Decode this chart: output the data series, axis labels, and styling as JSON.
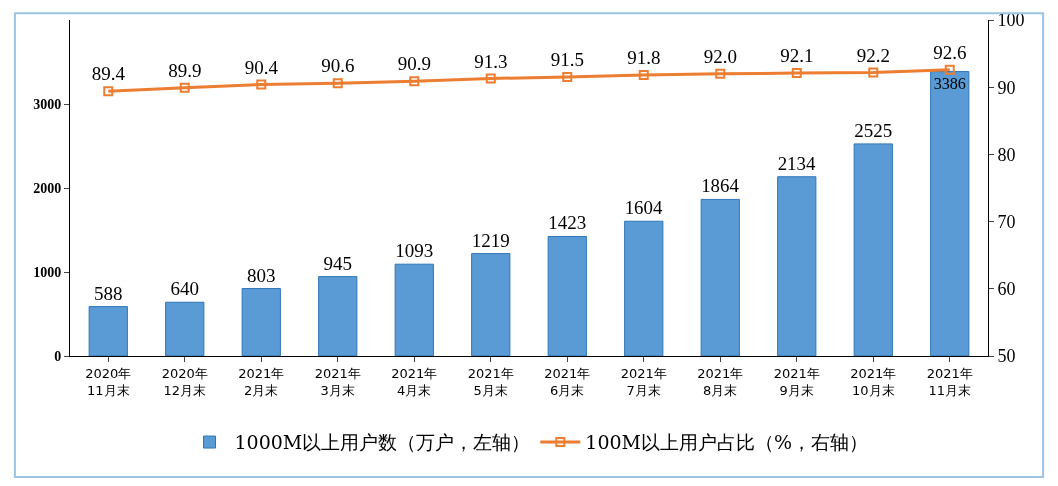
{
  "chart_data": {
    "type": "bar",
    "categories": [
      "2020年\n11月末",
      "2020年\n12月末",
      "2021年\n2月末",
      "2021年\n3月末",
      "2021年\n4月末",
      "2021年\n5月末",
      "2021年\n6月末",
      "2021年\n7月末",
      "2021年\n8月末",
      "2021年\n9月末",
      "2021年\n10月末",
      "2021年\n11月末"
    ],
    "series": [
      {
        "name": "1000M以上用户数（万户，左轴）",
        "color": "#5b9bd5",
        "values": [
          588,
          640,
          803,
          945,
          1093,
          1219,
          1423,
          1604,
          1864,
          2134,
          2525,
          3386
        ]
      },
      {
        "name": "100M以上用户占比（%，右轴）",
        "type": "line",
        "axis": "y2",
        "color": "#ed7d31",
        "marker": "square",
        "values": [
          89.4,
          89.9,
          90.4,
          90.6,
          90.9,
          91.3,
          91.5,
          91.8,
          92.0,
          92.1,
          92.2,
          92.6
        ],
        "value_labels": [
          "89.4",
          "89.9",
          "90.4",
          "90.6",
          "90.9",
          "91.3",
          "91.5",
          "91.8",
          "92.0",
          "92.1",
          "92.2",
          "92.6"
        ]
      }
    ],
    "data_labels": true,
    "ylim": [
      0,
      4000
    ],
    "yticks": [
      0,
      1000,
      2000,
      3000
    ],
    "y2lim": [
      50,
      100
    ],
    "y2ticks": [
      50,
      60,
      70,
      80,
      90,
      100
    ],
    "legend": "bottom"
  }
}
